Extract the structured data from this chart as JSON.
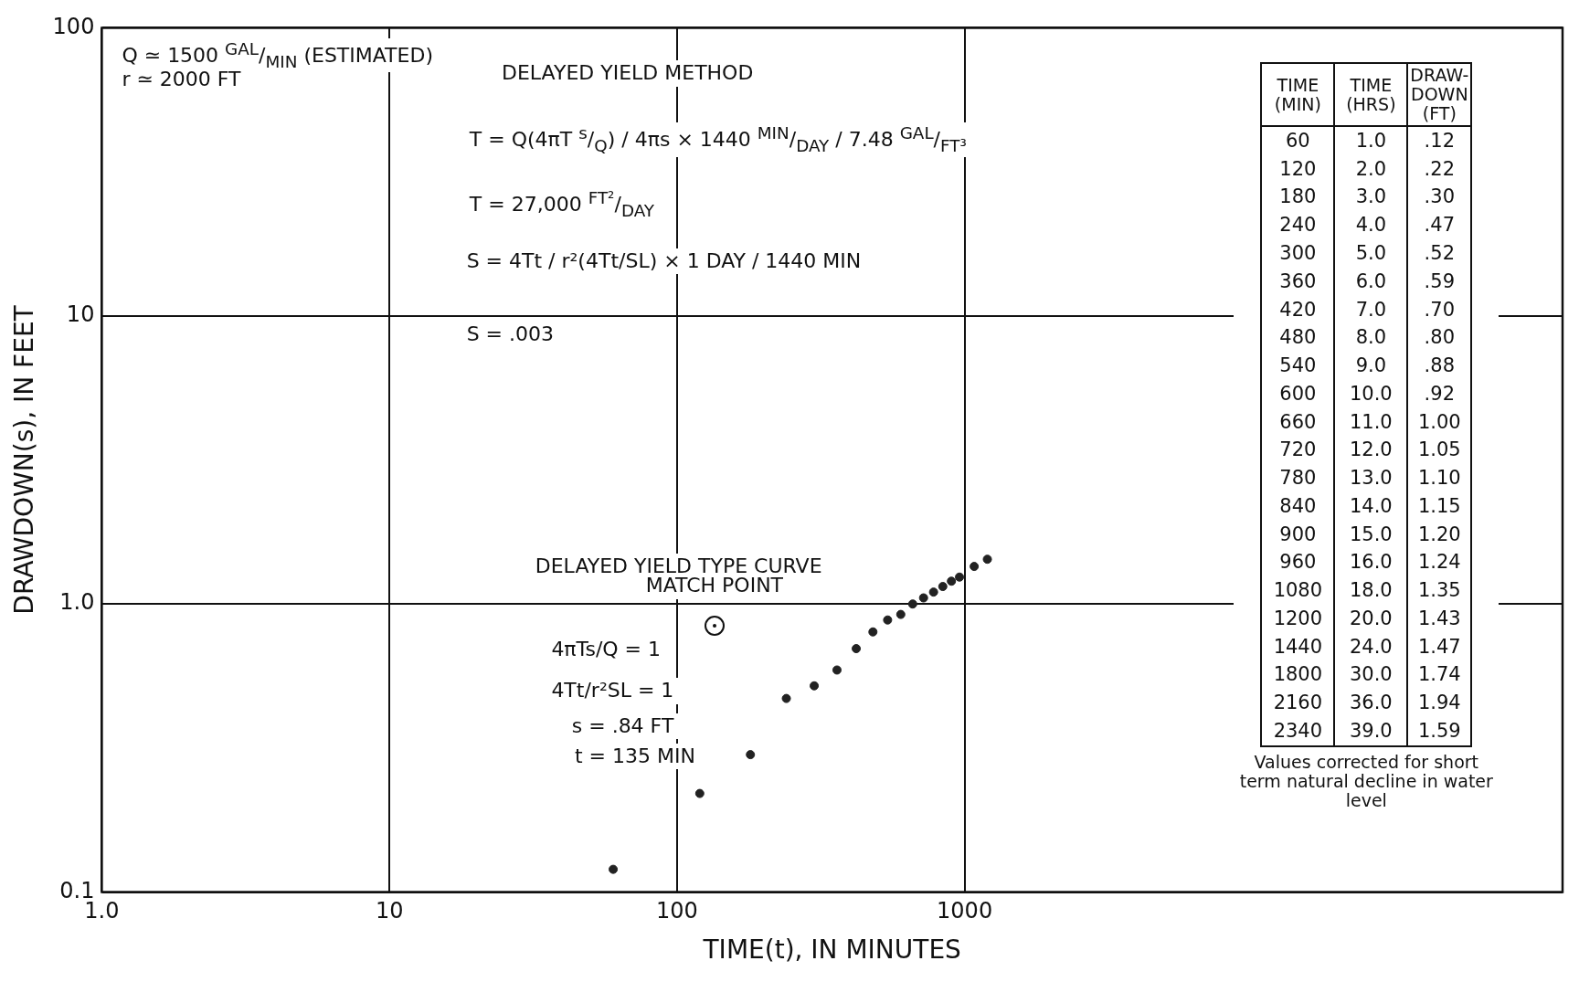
{
  "chart_data": {
    "type": "scatter",
    "xlabel": "TIME(t), IN MINUTES",
    "ylabel": "DRAWDOWN(s), IN FEET",
    "x": [
      60,
      120,
      180,
      240,
      300,
      360,
      420,
      480,
      540,
      600,
      660,
      720,
      780,
      840,
      900,
      960,
      1080,
      1200
    ],
    "series": [
      {
        "color": "#222222",
        "values": [
          0.12,
          0.22,
          0.3,
          0.47,
          0.52,
          0.59,
          0.7,
          0.8,
          0.88,
          0.92,
          1.0,
          1.05,
          1.1,
          1.15,
          1.2,
          1.24,
          1.35,
          1.43
        ]
      }
    ],
    "xlim": [
      1,
      120000
    ],
    "ylim": [
      0.1,
      100
    ],
    "xticks": [
      {
        "value": 1,
        "label": "1.0"
      },
      10,
      100,
      1000
    ],
    "yticks": [
      {
        "value": 0.1,
        "label": "0.1"
      },
      {
        "value": 1,
        "label": "1.0"
      },
      10,
      100
    ],
    "log": "xy",
    "grid": true,
    "legend": false,
    "marker": "circle",
    "annotations": [
      "Q ≃ 1500 $^{GAL}$/$_{MIN}$ (ESTIMATED)",
      "r ≃ 2000 FT",
      "DELAYED YIELD METHOD",
      "T = Q(4πT $^{s}$/$_{Q}$) / 4πs × 1440 $^{MIN}$/$_{DAY}$ / 7.48 $^{GAL}$/$_{FT³}$",
      "T = 27,000 $^{FT²}$/$_{DAY}$",
      "S = 4Tt / r²(4Tt/SL) × 1 DAY / 1440 MIN",
      "S = .003",
      "DELAYED YIELD TYPE CURVE",
      {
        "text": "MATCH POINT",
        "x": 135,
        "y": 0.84
      },
      "4πTs/Q = 1",
      "4Tt/r²SL = 1",
      "s = .84 FT",
      "t = 135 MIN",
      "TIME (MIN)",
      "TIME (HRS)",
      "DRAW-DOWN (FT)",
      "60",
      "1.0",
      ".12",
      "120",
      "2.0",
      ".22",
      "180",
      "3.0",
      ".30",
      "240",
      "4.0",
      ".47",
      "300",
      "5.0",
      ".52",
      "360",
      "6.0",
      ".59",
      "420",
      "7.0",
      ".70",
      "480",
      "8.0",
      ".80",
      "540",
      "9.0",
      ".88",
      "600",
      "10.0",
      ".92",
      "660",
      "11.0",
      "1.00",
      "720",
      "12.0",
      "1.05",
      "780",
      "13.0",
      "1.10",
      "840",
      "14.0",
      "1.15",
      "900",
      "15.0",
      "1.20",
      "960",
      "16.0",
      "1.24",
      "1080",
      "18.0",
      "1.35",
      "1200",
      "20.0",
      "1.43",
      "1440",
      "24.0",
      "1.47",
      "1800",
      "30.0",
      "1.74",
      "2160",
      "36.0",
      "1.94",
      "2340",
      "39.0",
      "1.59",
      "Values corrected for short term natural decline in water level"
    ]
  }
}
